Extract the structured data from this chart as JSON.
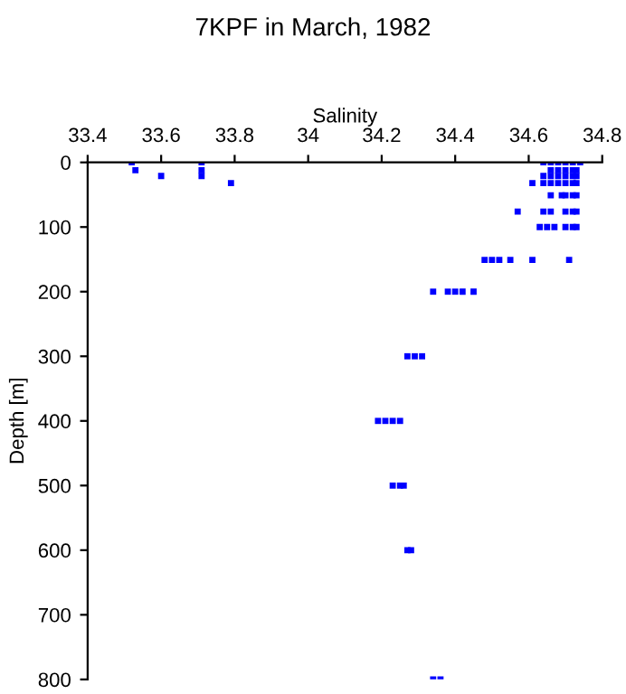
{
  "chart_data": {
    "type": "scatter",
    "title": "7KPF in March, 1982",
    "xlabel": "Salinity",
    "ylabel": "Depth [m]",
    "xlim": [
      33.4,
      34.8
    ],
    "xticks": [
      33.4,
      33.6,
      33.8,
      34,
      34.2,
      34.4,
      34.6,
      34.8
    ],
    "ylim": [
      800,
      0
    ],
    "yticks": [
      0,
      100,
      200,
      300,
      400,
      500,
      600,
      700,
      800
    ],
    "grid": false,
    "marker": "square",
    "legend": false,
    "series": [
      {
        "color": "#0000ff",
        "x": [
          33.52,
          33.71,
          34.64,
          34.66,
          34.68,
          34.7,
          34.72,
          34.74,
          33.53,
          33.71,
          34.66,
          34.68,
          34.7,
          34.72,
          34.73,
          33.6,
          33.71,
          34.64,
          34.66,
          34.68,
          34.7,
          34.72,
          34.73,
          33.79,
          34.61,
          34.64,
          34.66,
          34.68,
          34.7,
          34.72,
          34.73,
          34.66,
          34.69,
          34.7,
          34.72,
          34.73,
          34.57,
          34.64,
          34.66,
          34.7,
          34.72,
          34.73,
          34.63,
          34.65,
          34.67,
          34.7,
          34.72,
          34.73,
          34.48,
          34.5,
          34.52,
          34.55,
          34.61,
          34.71,
          34.34,
          34.38,
          34.4,
          34.42,
          34.45,
          34.27,
          34.29,
          34.31,
          34.19,
          34.21,
          34.23,
          34.25,
          34.23,
          34.25,
          34.26,
          34.27,
          34.28,
          34.34,
          34.36
        ],
        "values": [
          0,
          0,
          0,
          0,
          0,
          0,
          0,
          0,
          12,
          12,
          12,
          12,
          12,
          12,
          12,
          21,
          21,
          21,
          21,
          21,
          21,
          21,
          21,
          32,
          32,
          32,
          32,
          32,
          32,
          32,
          32,
          51,
          51,
          51,
          51,
          51,
          76,
          76,
          76,
          76,
          76,
          76,
          100,
          100,
          100,
          100,
          100,
          100,
          151,
          151,
          151,
          151,
          151,
          151,
          200,
          200,
          200,
          200,
          200,
          300,
          300,
          300,
          400,
          400,
          400,
          400,
          500,
          500,
          500,
          600,
          600,
          800,
          800
        ]
      }
    ]
  }
}
